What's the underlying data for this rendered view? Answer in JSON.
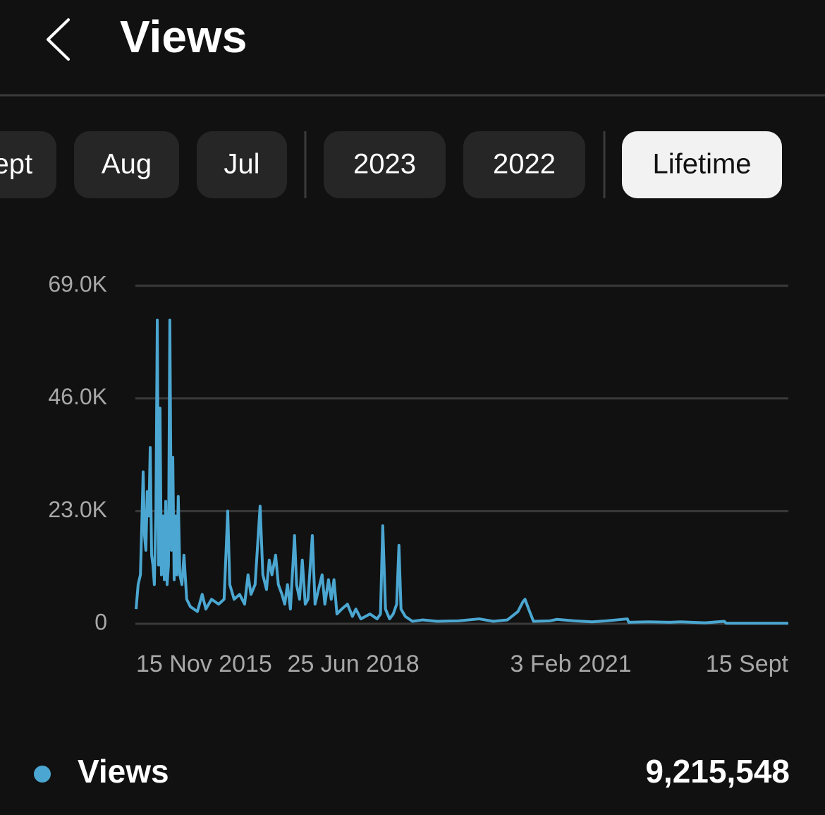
{
  "header": {
    "title": "Views"
  },
  "tabs": [
    {
      "label": "Sept"
    },
    {
      "label": "Aug"
    },
    {
      "label": "Jul"
    },
    {
      "label": "2023"
    },
    {
      "label": "2022"
    },
    {
      "label": "Lifetime",
      "selected": true
    }
  ],
  "chart_data": {
    "type": "line",
    "x": [
      "2015-11-15",
      "2015-11-24",
      "2015-12-04",
      "2015-12-10",
      "2015-12-16",
      "2015-12-22",
      "2015-12-28",
      "2016-01-03",
      "2016-01-10",
      "2016-01-16",
      "2016-01-22",
      "2016-01-28",
      "2016-02-03",
      "2016-02-10",
      "2016-02-16",
      "2016-02-22",
      "2016-02-28",
      "2016-03-05",
      "2016-03-11",
      "2016-03-18",
      "2016-03-24",
      "2016-03-30",
      "2016-04-05",
      "2016-04-11",
      "2016-04-18",
      "2016-04-24",
      "2016-04-30",
      "2016-05-06",
      "2016-05-12",
      "2016-05-18",
      "2016-05-25",
      "2016-06-03",
      "2016-06-12",
      "2016-06-24",
      "2016-07-10",
      "2016-08-10",
      "2016-08-31",
      "2016-09-16",
      "2016-10-11",
      "2016-11-11",
      "2016-12-05",
      "2016-12-21",
      "2016-12-30",
      "2017-01-18",
      "2017-02-11",
      "2017-03-05",
      "2017-03-20",
      "2017-04-02",
      "2017-04-20",
      "2017-05-12",
      "2017-05-24",
      "2017-06-09",
      "2017-06-21",
      "2017-07-03",
      "2017-07-19",
      "2017-07-31",
      "2017-08-16",
      "2017-08-28",
      "2017-09-09",
      "2017-09-22",
      "2017-10-10",
      "2017-10-19",
      "2017-11-01",
      "2017-11-13",
      "2017-11-26",
      "2017-12-08",
      "2017-12-27",
      "2018-01-08",
      "2018-01-23",
      "2018-02-08",
      "2018-02-20",
      "2018-03-08",
      "2018-03-20",
      "2018-04-01",
      "2018-04-14",
      "2018-05-05",
      "2018-05-30",
      "2018-06-21",
      "2018-07-06",
      "2018-07-28",
      "2018-09-06",
      "2018-10-07",
      "2018-10-22",
      "2018-11-01",
      "2018-11-13",
      "2018-12-01",
      "2018-12-17",
      "2019-01-01",
      "2019-01-11",
      "2019-01-20",
      "2019-02-08",
      "2019-03-11",
      "2019-04-26",
      "2019-06-27",
      "2019-09-28",
      "2019-12-29",
      "2020-02-29",
      "2020-05-01",
      "2020-06-16",
      "2020-07-08",
      "2020-07-17",
      "2020-08-02",
      "2020-08-23",
      "2020-11-03",
      "2020-12-04",
      "2021-02-19",
      "2021-05-07",
      "2021-07-08",
      "2021-10-09",
      "2021-10-15",
      "2022-01-10",
      "2022-04-13",
      "2022-05-30",
      "2022-09-15",
      "2022-12-08",
      "2022-12-17",
      "2023-05-21",
      "2023-09-15"
    ],
    "series": [
      {
        "name": "Views",
        "color": "#4ba7d1",
        "values": [
          3000,
          8000,
          10000,
          20000,
          31000,
          18000,
          15000,
          27000,
          22000,
          36000,
          14000,
          12000,
          8000,
          23000,
          62000,
          12000,
          44000,
          10000,
          22000,
          9000,
          25000,
          8000,
          12000,
          62000,
          15000,
          34000,
          9000,
          22000,
          10000,
          26000,
          10000,
          8000,
          14000,
          5000,
          3500,
          2500,
          6000,
          3000,
          5000,
          4000,
          5000,
          23000,
          8000,
          5000,
          6000,
          4000,
          10000,
          6000,
          8000,
          24000,
          10000,
          7000,
          13000,
          10000,
          14000,
          8000,
          6000,
          4000,
          8000,
          3000,
          18000,
          8000,
          5000,
          13000,
          4000,
          5000,
          18000,
          4000,
          7000,
          10000,
          4000,
          9000,
          5000,
          9000,
          2000,
          3000,
          4000,
          1500,
          3000,
          1000,
          2000,
          1000,
          2000,
          20000,
          3000,
          1000,
          2000,
          4000,
          16000,
          3000,
          1500,
          500,
          800,
          500,
          600,
          1000,
          500,
          800,
          2500,
          4500,
          5000,
          3000,
          500,
          600,
          900,
          600,
          400,
          600,
          1000,
          300,
          400,
          300,
          400,
          200,
          500,
          100,
          100,
          100
        ]
      }
    ],
    "xlim": [
      "2015-11-15",
      "2023-09-15"
    ],
    "xticks": [
      {
        "value": "2015-11-15",
        "label": "15 Nov 2015"
      },
      {
        "value": "2018-06-25",
        "label": "25 Jun 2018"
      },
      {
        "value": "2021-02-03",
        "label": "3 Feb 2021"
      },
      {
        "value": "2023-09-15",
        "label": "15 Sept"
      }
    ],
    "ylim": [
      0,
      69000
    ],
    "yticks": [
      0,
      {
        "value": 23000,
        "label": "23.0K"
      },
      {
        "value": 46000,
        "label": "46.0K"
      },
      {
        "value": 69000,
        "label": "69.0K"
      }
    ],
    "grid": true
  },
  "summary": {
    "total": "9,215,548"
  }
}
